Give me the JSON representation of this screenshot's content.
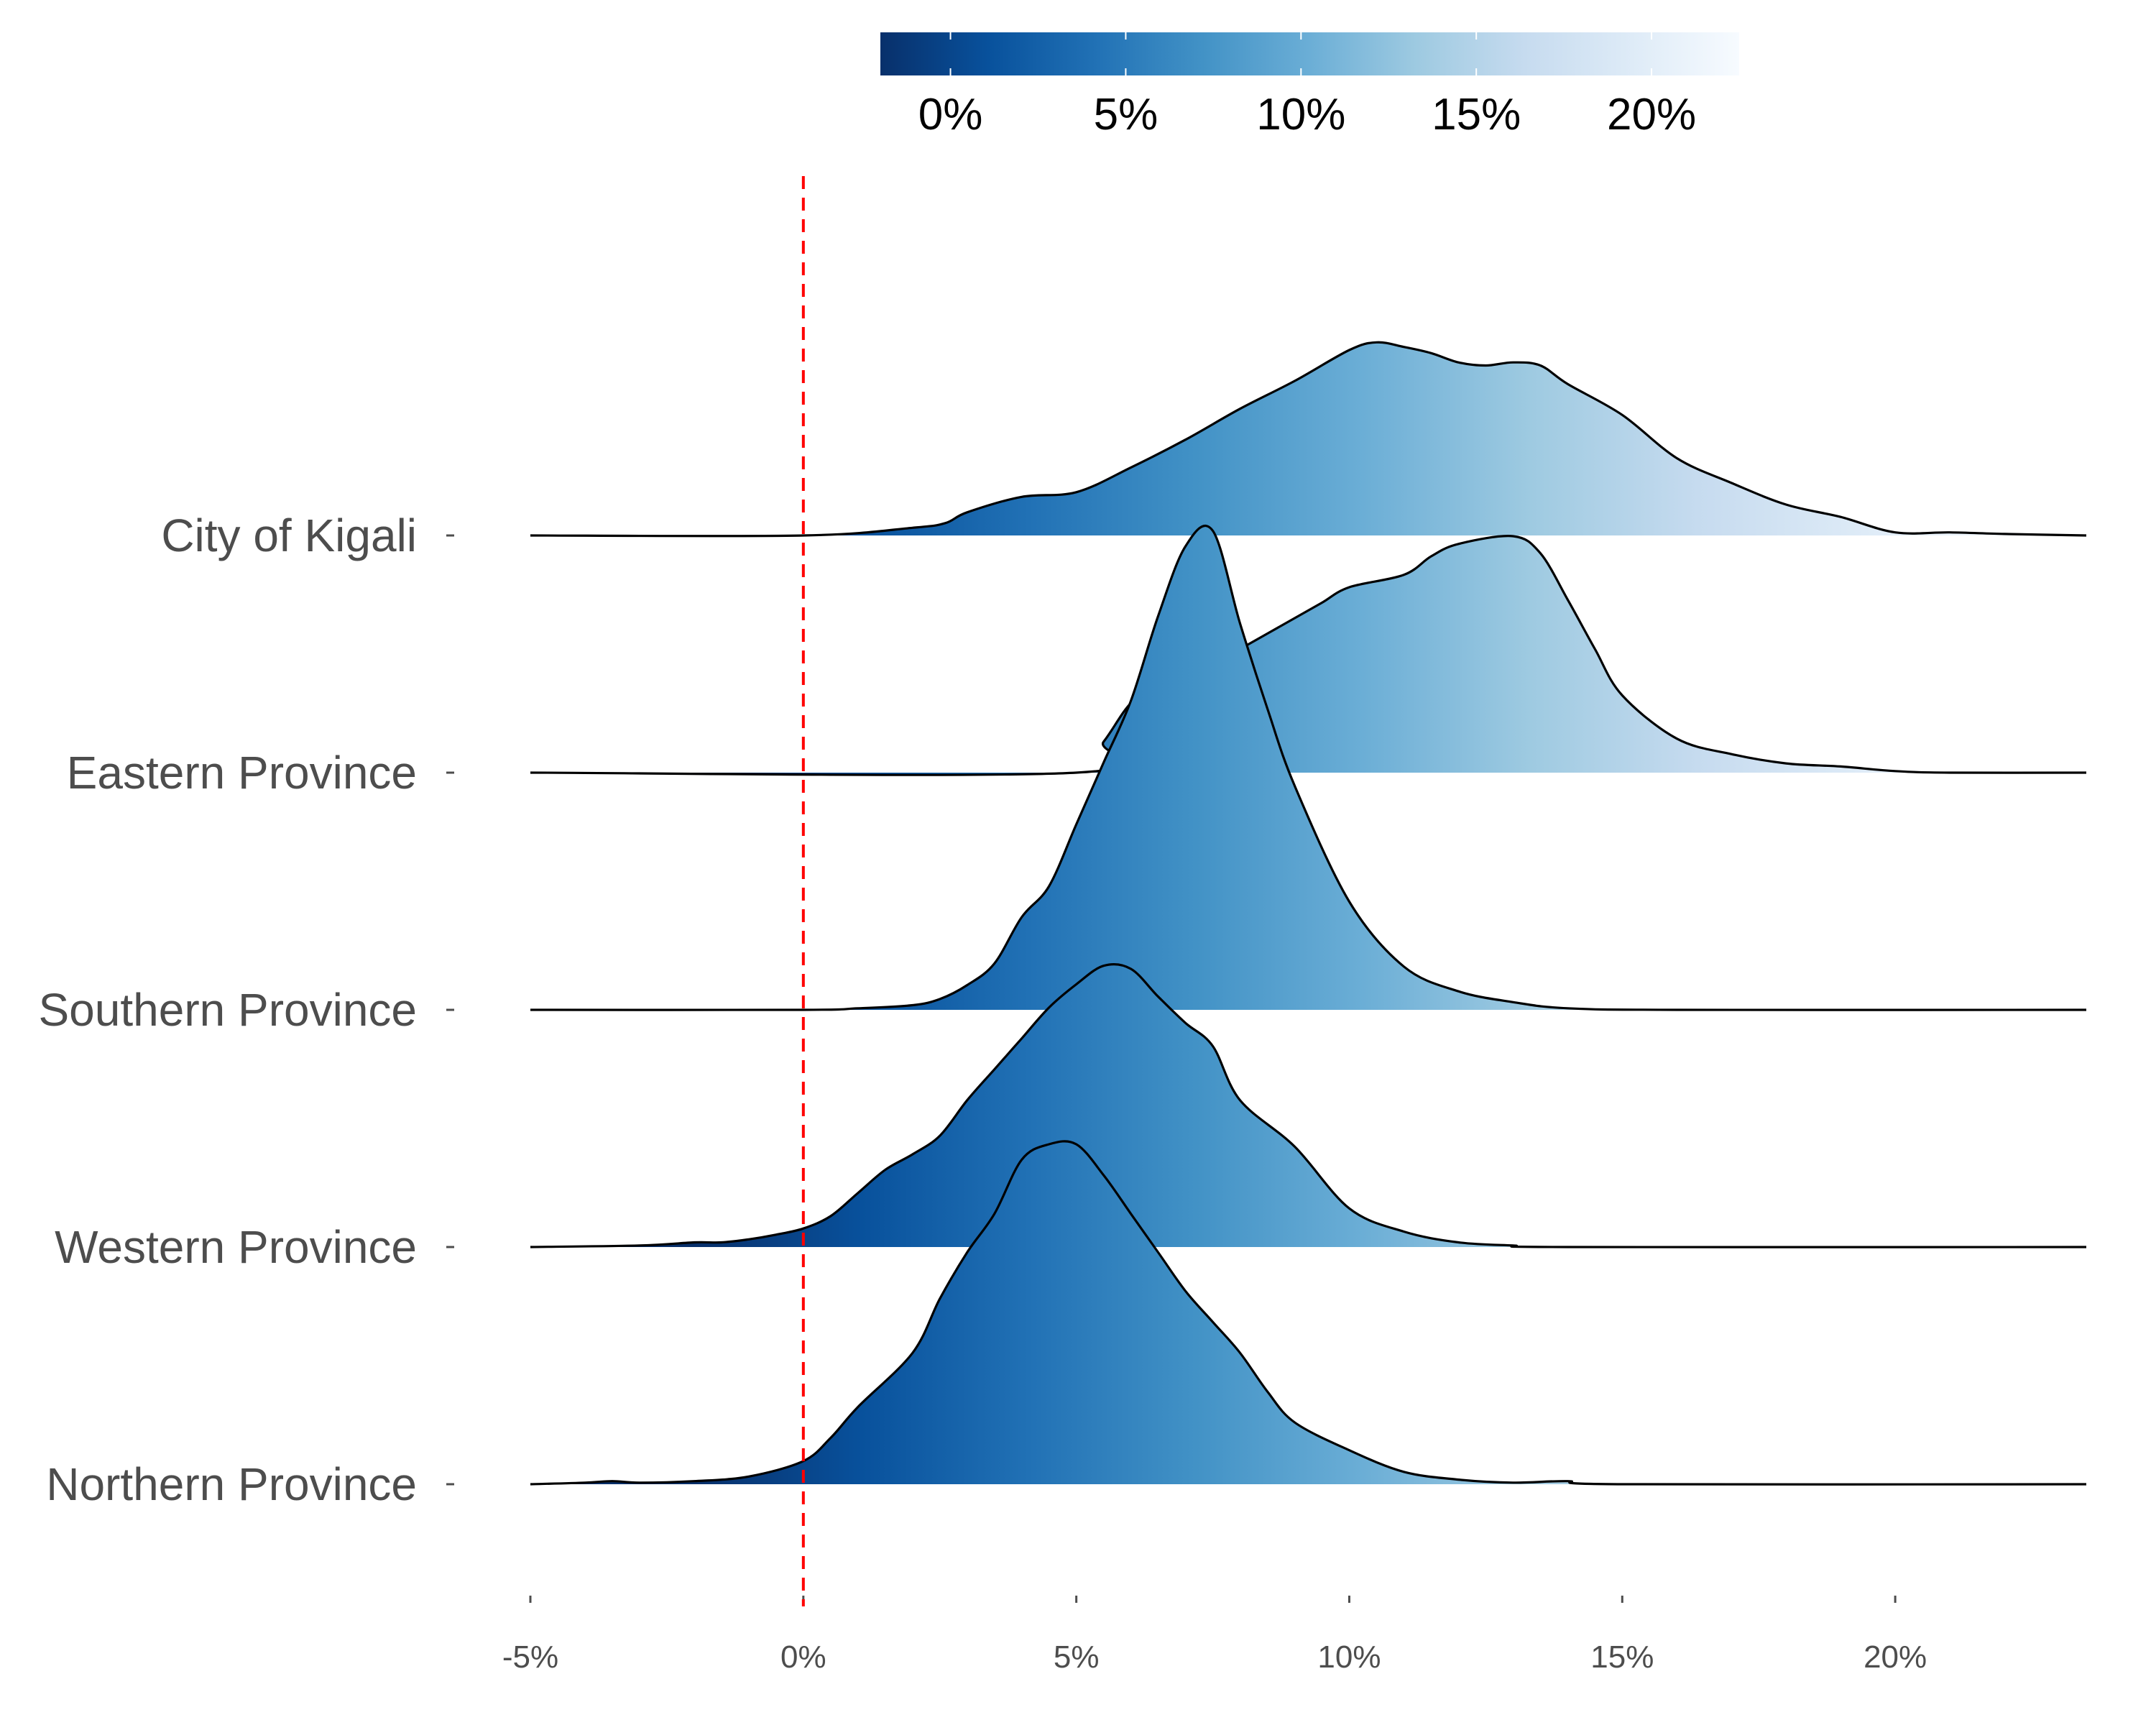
{
  "chart_data": {
    "type": "ridgeline",
    "title": "",
    "xlabel": "",
    "ylabel": "",
    "xlim": [
      -5,
      23.5
    ],
    "x_ticks": [
      "-5%",
      "0%",
      "5%",
      "10%",
      "15%",
      "20%"
    ],
    "x_tick_values": [
      -5,
      0,
      5,
      10,
      15,
      20
    ],
    "reference_line": {
      "x": 0,
      "color": "#ff0000",
      "style": "dashed"
    },
    "colorscale": {
      "palette": "Blues (reversed)",
      "range": [
        -2,
        22.5
      ],
      "ticks": [
        "0%",
        "5%",
        "10%",
        "15%",
        "20%"
      ],
      "tick_values": [
        0,
        5,
        10,
        15,
        20
      ],
      "colors": [
        "#08306b",
        "#08519c",
        "#2171b5",
        "#4292c6",
        "#6baed6",
        "#9ecae1",
        "#c6dbef",
        "#deebf7",
        "#f7fbff"
      ],
      "legend_position": "top"
    },
    "categories": [
      "City of Kigali",
      "Eastern Province",
      "Southern Province",
      "Western Province",
      "Northern Province"
    ],
    "series": [
      {
        "name": "City of Kigali",
        "x": [
          -5,
          0,
          2,
          2.6,
          3,
          4,
          5,
          6,
          7,
          8,
          9,
          10,
          10.5,
          11,
          11.5,
          12,
          12.5,
          13,
          13.5,
          14,
          15,
          16,
          17,
          18,
          19,
          20,
          21,
          22,
          23.5
        ],
        "density": [
          0,
          0,
          0.05,
          0.08,
          0.15,
          0.25,
          0.28,
          0.44,
          0.62,
          0.82,
          1.0,
          1.2,
          1.25,
          1.22,
          1.18,
          1.12,
          1.1,
          1.12,
          1.1,
          0.98,
          0.78,
          0.5,
          0.34,
          0.2,
          0.12,
          0.02,
          0.02,
          0.01,
          0
        ]
      },
      {
        "name": "Eastern Province",
        "x": [
          -5,
          5,
          5.5,
          6,
          6.5,
          7,
          7.5,
          8,
          8.5,
          9,
          9.5,
          10,
          11,
          11.5,
          12,
          13,
          13.5,
          14,
          14.5,
          15,
          16,
          17,
          18,
          19,
          20,
          21,
          23.5
        ],
        "density": [
          0,
          0,
          0.2,
          0.45,
          0.55,
          0.62,
          0.7,
          0.8,
          0.9,
          1.0,
          1.1,
          1.2,
          1.28,
          1.4,
          1.48,
          1.53,
          1.42,
          1.12,
          0.8,
          0.5,
          0.22,
          0.12,
          0.06,
          0.04,
          0.01,
          0,
          0
        ]
      },
      {
        "name": "Southern Province",
        "x": [
          -5,
          0,
          1,
          2,
          2.5,
          3,
          3.5,
          4,
          4.5,
          5,
          5.5,
          6,
          6.5,
          7,
          7.5,
          8,
          8.5,
          9,
          10,
          11,
          12,
          13,
          14,
          16,
          23.5
        ],
        "density": [
          0,
          0,
          0.01,
          0.03,
          0.07,
          0.16,
          0.3,
          0.6,
          0.8,
          1.2,
          1.6,
          2.0,
          2.55,
          3.0,
          3.1,
          2.5,
          1.95,
          1.45,
          0.7,
          0.28,
          0.12,
          0.05,
          0.01,
          0,
          0
        ]
      },
      {
        "name": "Western Province",
        "x": [
          -5,
          -3,
          -2,
          -1.5,
          -1,
          -0.5,
          0,
          0.5,
          1,
          1.5,
          2,
          2.5,
          3,
          3.5,
          4,
          4.5,
          5,
          5.5,
          6,
          6.5,
          7,
          7.5,
          8,
          9,
          10,
          11,
          12,
          13,
          14,
          23.5
        ],
        "density": [
          0,
          0.01,
          0.03,
          0.03,
          0.05,
          0.08,
          0.12,
          0.2,
          0.35,
          0.5,
          0.6,
          0.72,
          0.95,
          1.15,
          1.35,
          1.55,
          1.7,
          1.82,
          1.8,
          1.62,
          1.45,
          1.3,
          0.95,
          0.65,
          0.25,
          0.1,
          0.03,
          0.01,
          0,
          0
        ]
      },
      {
        "name": "Northern Province",
        "x": [
          -5,
          -4,
          -3.5,
          -3,
          -2,
          -1,
          0,
          0.5,
          1,
          2,
          2.5,
          3,
          3.5,
          4,
          4.5,
          5,
          5.5,
          6,
          6.5,
          7,
          7.5,
          8,
          8.5,
          9,
          10,
          11,
          12,
          13,
          14,
          15,
          23.5
        ],
        "density": [
          0,
          0.01,
          0.02,
          0.01,
          0.02,
          0.05,
          0.15,
          0.3,
          0.5,
          0.85,
          1.2,
          1.5,
          1.75,
          2.1,
          2.2,
          2.2,
          2.0,
          1.75,
          1.5,
          1.25,
          1.05,
          0.85,
          0.6,
          0.4,
          0.22,
          0.08,
          0.03,
          0.01,
          0.02,
          0,
          0
        ]
      }
    ]
  }
}
